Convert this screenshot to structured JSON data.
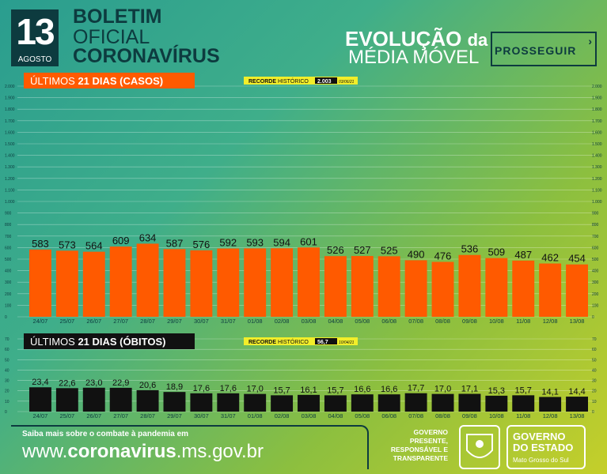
{
  "header": {
    "day": "13",
    "month": "AGOSTO",
    "boletim": "BOLETIM",
    "oficial": "OFICIAL",
    "coronavirus": "CORONAVÍRUS",
    "evolucao": "EVOLUÇÃO",
    "da": "da",
    "media_movel": "MÉDIA MÓVEL",
    "prosseguir": "PROSSEGUIR"
  },
  "colors": {
    "cases_bar": "#ff5a00",
    "deaths_bar": "#111111",
    "title_bg_cases": "#ff5a00",
    "title_bg_deaths": "#111111",
    "record_bg": "#f2ee2a",
    "axis_text": "#0d3b3f"
  },
  "chart_data": [
    {
      "type": "bar",
      "title": "ÚLTIMOS 21 DIAS (CASOS)",
      "title_prefix": "ÚLTIMOS",
      "title_bold": "21 DIAS (CASOS)",
      "record_label_1": "RECORDE",
      "record_label_2": "HISTÓRICO",
      "record_value": "2.003",
      "record_date": "03/06/21",
      "categories": [
        "24/07",
        "25/07",
        "26/07",
        "27/07",
        "28/07",
        "29/07",
        "30/07",
        "31/07",
        "01/08",
        "02/08",
        "03/08",
        "04/08",
        "05/08",
        "06/08",
        "07/08",
        "08/08",
        "09/08",
        "10/08",
        "11/08",
        "12/08",
        "13/08"
      ],
      "values": [
        583,
        573,
        564,
        609,
        634,
        587,
        576,
        592,
        593,
        594,
        601,
        526,
        527,
        525,
        490,
        476,
        536,
        509,
        487,
        462,
        454
      ],
      "value_labels": [
        "583",
        "573",
        "564",
        "609",
        "634",
        "587",
        "576",
        "592",
        "593",
        "594",
        "601",
        "526",
        "527",
        "525",
        "490",
        "476",
        "536",
        "509",
        "487",
        "462",
        "454"
      ],
      "ylim": [
        0,
        2000
      ],
      "yticks": [
        0,
        100,
        200,
        300,
        400,
        500,
        600,
        700,
        800,
        900,
        1000,
        1100,
        1200,
        1300,
        1400,
        1500,
        1600,
        1700,
        1800,
        1900,
        2000
      ],
      "ytick_labels": [
        "0",
        "100",
        "200",
        "300",
        "400",
        "500",
        "600",
        "700",
        "800",
        "900",
        "1.000",
        "1.100",
        "1.200",
        "1.300",
        "1.400",
        "1.500",
        "1.600",
        "1.700",
        "1.800",
        "1.900",
        "2.000"
      ],
      "grid": true
    },
    {
      "type": "bar",
      "title": "ÚLTIMOS 21 DIAS (ÓBITOS)",
      "title_prefix": "ÚLTIMOS",
      "title_bold": "21 DIAS (ÓBITOS)",
      "record_label_1": "RECORDE",
      "record_label_2": "HISTÓRICO",
      "record_value": "56,7",
      "record_date": "10/04/21",
      "categories": [
        "24/07",
        "25/07",
        "26/07",
        "27/07",
        "28/07",
        "29/07",
        "30/07",
        "31/07",
        "01/08",
        "02/08",
        "03/08",
        "04/08",
        "05/08",
        "06/08",
        "07/08",
        "08/08",
        "09/08",
        "10/08",
        "11/08",
        "12/08",
        "13/08"
      ],
      "values": [
        23.4,
        22.6,
        23.0,
        22.9,
        20.6,
        18.9,
        17.6,
        17.6,
        17.0,
        15.7,
        16.1,
        15.7,
        16.6,
        16.6,
        17.7,
        17.0,
        17.1,
        15.3,
        15.7,
        14.1,
        14.4
      ],
      "value_labels": [
        "23,4",
        "22,6",
        "23,0",
        "22,9",
        "20,6",
        "18,9",
        "17,6",
        "17,6",
        "17,0",
        "15,7",
        "16,1",
        "15,7",
        "16,6",
        "16,6",
        "17,7",
        "17,0",
        "17,1",
        "15,3",
        "15,7",
        "14,1",
        "14,4"
      ],
      "ylim": [
        0,
        70
      ],
      "yticks": [
        0,
        10,
        20,
        30,
        40,
        50,
        60,
        70
      ],
      "ytick_labels": [
        "0",
        "10",
        "20",
        "30",
        "40",
        "50",
        "60",
        "70"
      ],
      "grid": true
    }
  ],
  "footer": {
    "saiba_mais": "Saiba mais sobre o combate à pandemia em",
    "url_pre": "www.",
    "url_bold": "coronavirus",
    "url_post": ".ms.gov.br",
    "gov_tag_1": "GOVERNO",
    "gov_tag_2": "PRESENTE,",
    "gov_tag_3": "RESPONSÁVEL E",
    "gov_tag_4": "TRANSPARENTE",
    "gov_1": "GOVERNO",
    "gov_2": "DO ESTADO",
    "gov_3": "Mato Grosso do Sul"
  }
}
